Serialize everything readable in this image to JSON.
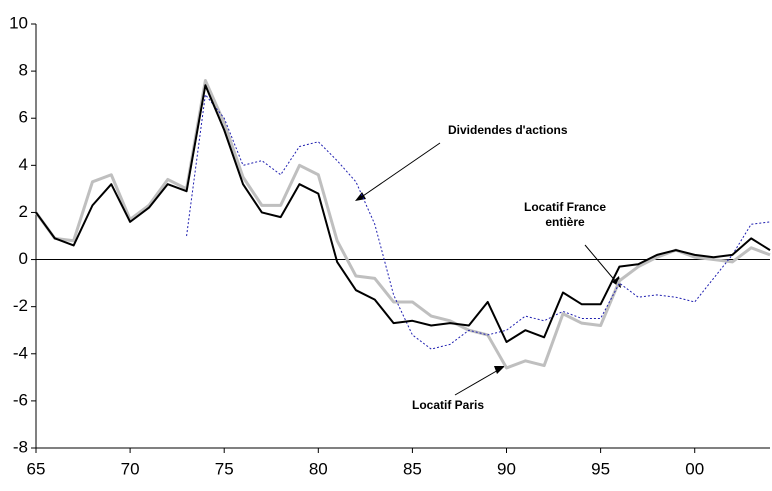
{
  "chart_data": {
    "type": "line",
    "x": [
      1965,
      1966,
      1967,
      1968,
      1969,
      1970,
      1971,
      1972,
      1973,
      1974,
      1975,
      1976,
      1977,
      1978,
      1979,
      1980,
      1981,
      1982,
      1983,
      1984,
      1985,
      1986,
      1987,
      1988,
      1989,
      1990,
      1991,
      1992,
      1993,
      1994,
      1995,
      1996,
      1997,
      1998,
      1999,
      2000,
      2001,
      2002,
      2003,
      2004
    ],
    "series": [
      {
        "name": "Locatif Paris",
        "color": "#bfbfbf",
        "style": "solid",
        "width": 3,
        "values": [
          2.0,
          0.9,
          0.8,
          3.3,
          3.6,
          1.7,
          2.3,
          3.4,
          3.0,
          7.6,
          5.8,
          3.5,
          2.3,
          2.3,
          4.0,
          3.6,
          0.8,
          -0.7,
          -0.8,
          -1.8,
          -1.8,
          -2.4,
          -2.6,
          -3.0,
          -3.2,
          -4.6,
          -4.3,
          -4.5,
          -2.3,
          -2.7,
          -2.8,
          -0.9,
          -0.3,
          0.1,
          0.4,
          0.1,
          0.0,
          -0.1,
          0.5,
          0.2
        ]
      },
      {
        "name": "Dividendes d'actions",
        "color": "#1f1fb0",
        "style": "dotted",
        "width": 1,
        "values": [
          null,
          null,
          null,
          null,
          null,
          null,
          null,
          null,
          1.0,
          7.0,
          6.0,
          4.0,
          4.2,
          3.6,
          4.8,
          5.0,
          4.2,
          3.3,
          1.5,
          -1.5,
          -3.2,
          -3.8,
          -3.6,
          -3.0,
          -3.2,
          -3.0,
          -2.4,
          -2.6,
          -2.2,
          -2.5,
          -2.5,
          -1.0,
          -1.6,
          -1.5,
          -1.6,
          -1.8,
          -0.8,
          0.2,
          1.5,
          1.6
        ]
      },
      {
        "name": "Locatif France entière",
        "color": "#000000",
        "style": "solid",
        "width": 2,
        "values": [
          2.0,
          0.9,
          0.6,
          2.3,
          3.2,
          1.6,
          2.2,
          3.2,
          2.9,
          7.4,
          5.5,
          3.2,
          2.0,
          1.8,
          3.2,
          2.8,
          -0.1,
          -1.3,
          -1.7,
          -2.7,
          -2.6,
          -2.8,
          -2.7,
          -2.8,
          -1.8,
          -3.5,
          -3.0,
          -3.3,
          -1.4,
          -1.9,
          -1.9,
          -0.3,
          -0.2,
          0.2,
          0.4,
          0.2,
          0.1,
          0.2,
          0.9,
          0.4
        ]
      }
    ],
    "xlim": [
      1965,
      2004
    ],
    "xticks": [
      {
        "value": 1965,
        "label": "65"
      },
      {
        "value": 1970,
        "label": "70"
      },
      {
        "value": 1975,
        "label": "75"
      },
      {
        "value": 1980,
        "label": "80"
      },
      {
        "value": 1985,
        "label": "85"
      },
      {
        "value": 1990,
        "label": "90"
      },
      {
        "value": 1995,
        "label": "95"
      },
      {
        "value": 2000,
        "label": "00"
      }
    ],
    "ylim": [
      -8,
      10
    ],
    "yticks": [
      -8,
      -6,
      -4,
      -2,
      0,
      2,
      4,
      6,
      8,
      10
    ]
  }
}
